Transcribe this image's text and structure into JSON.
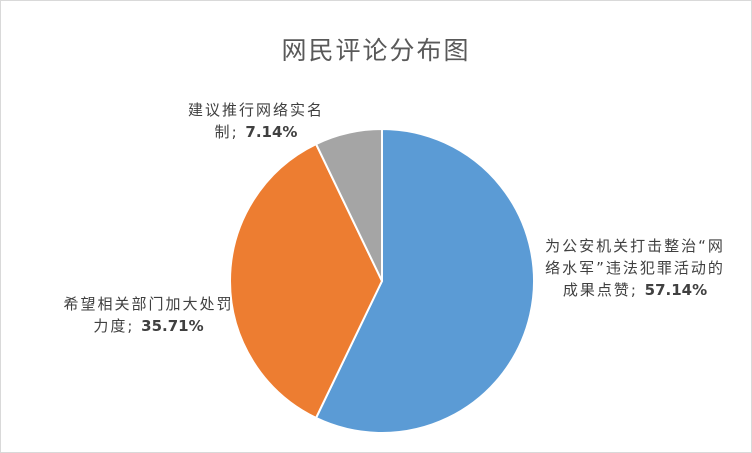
{
  "chart_data": {
    "type": "pie",
    "title": "网民评论分布图",
    "categories": [
      "为公安机关打击整治“网络水军”违法犯罪活动的成果点赞",
      "希望相关部门加大处罚力度",
      "建议推行网络实名制"
    ],
    "values": [
      57.14,
      35.71,
      7.14
    ],
    "value_labels": [
      "57.14%",
      "35.71%",
      "7.14%"
    ],
    "label_separator": "; ",
    "colors": [
      "#5b9bd5",
      "#ed7d31",
      "#a5a5a5"
    ]
  }
}
